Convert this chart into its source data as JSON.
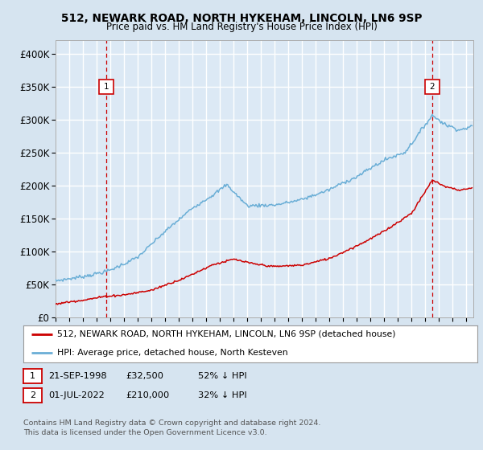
{
  "title": "512, NEWARK ROAD, NORTH HYKEHAM, LINCOLN, LN6 9SP",
  "subtitle": "Price paid vs. HM Land Registry's House Price Index (HPI)",
  "background_color": "#d6e4f0",
  "plot_bg_color": "#dce9f5",
  "grid_color": "#ffffff",
  "hpi_color": "#6aaed6",
  "price_color": "#cc0000",
  "marker1_x": 1998.72,
  "marker2_x": 2022.5,
  "yticks": [
    0,
    50000,
    100000,
    150000,
    200000,
    250000,
    300000,
    350000,
    400000
  ],
  "ytick_labels": [
    "£0",
    "£50K",
    "£100K",
    "£150K",
    "£200K",
    "£250K",
    "£300K",
    "£350K",
    "£400K"
  ],
  "xmin": 1995.0,
  "xmax": 2025.5,
  "ymin": 0,
  "ymax": 420000,
  "legend_line1": "512, NEWARK ROAD, NORTH HYKEHAM, LINCOLN, LN6 9SP (detached house)",
  "legend_line2": "HPI: Average price, detached house, North Kesteven",
  "note1_date": "21-SEP-1998",
  "note1_price": "£32,500",
  "note1_hpi": "52% ↓ HPI",
  "note2_date": "01-JUL-2022",
  "note2_price": "£210,000",
  "note2_hpi": "32% ↓ HPI",
  "footnote": "Contains HM Land Registry data © Crown copyright and database right 2024.\nThis data is licensed under the Open Government Licence v3.0."
}
